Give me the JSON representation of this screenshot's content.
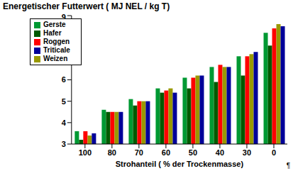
{
  "chart_data": {
    "type": "bar",
    "title": "Energetischer Futterwert ( MJ NEL / kg T)",
    "x_label": "Strohanteil ( % der Trockenmasse)",
    "annotation": "¶",
    "categories": [
      "100",
      "80",
      "70",
      "60",
      "50",
      "40",
      "30",
      "0"
    ],
    "series": [
      {
        "name": "Gerste",
        "color": "#009933",
        "values": [
          3.6,
          4.6,
          5.1,
          5.6,
          6.1,
          6.6,
          7.1,
          8.2
        ]
      },
      {
        "name": "Hafer",
        "color": "#005a00",
        "values": [
          3.2,
          4.5,
          4.8,
          5.4,
          5.6,
          5.9,
          6.2,
          7.6
        ]
      },
      {
        "name": "Roggen",
        "color": "#ff0000",
        "values": [
          3.6,
          4.5,
          5.0,
          5.5,
          6.1,
          6.7,
          7.1,
          8.4
        ]
      },
      {
        "name": "Weizen",
        "color": "#999900",
        "values": [
          3.4,
          4.5,
          5.0,
          5.6,
          6.2,
          6.6,
          7.2,
          8.6
        ]
      },
      {
        "name": "Triticale",
        "color": "#000099",
        "values": [
          3.5,
          4.5,
          5.0,
          5.4,
          6.2,
          6.6,
          7.3,
          8.5
        ]
      }
    ],
    "ylim": [
      3,
      9
    ],
    "yticks": [
      3,
      4,
      5,
      6,
      7,
      8,
      9
    ],
    "grid": false,
    "legend": "upper left"
  }
}
